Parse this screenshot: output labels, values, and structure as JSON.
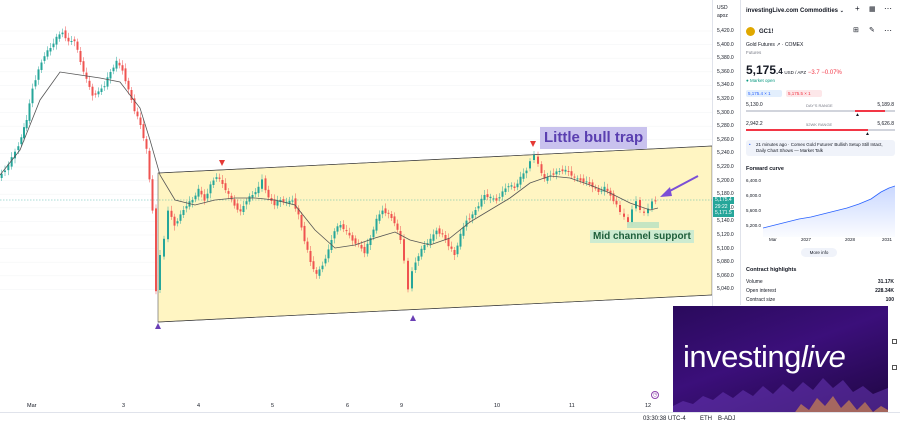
{
  "chart": {
    "currency": "USD",
    "unit": "apoz",
    "price_ticks": [
      "5,420.0",
      "5,400.0",
      "5,380.0",
      "5,360.0",
      "5,340.0",
      "5,320.0",
      "5,300.0",
      "5,280.0",
      "5,260.0",
      "5,240.0",
      "5,220.0",
      "5,200.0",
      "5,180.0",
      "5,160.0",
      "5,140.0",
      "5,120.0",
      "5,100.0",
      "5,080.0",
      "5,060.0",
      "5,040.0"
    ],
    "time_ticks": [
      "Mar",
      "3",
      "4",
      "5",
      "6",
      "9",
      "10",
      "11",
      "12"
    ],
    "last_price_tag": "5,175.4",
    "last_price_sub": "29:22",
    "second_price_tag": "5,171.5",
    "annotations": {
      "bull_trap": "Little bull trap",
      "mid_support": "Mid channel support"
    },
    "colors": {
      "up": "#26a69a",
      "down": "#ef5350",
      "channel_fill": "#fff5c2",
      "arrow_down": "#e53935",
      "arrow_up": "#6a3fb5",
      "label_bg": "#c9c2ee",
      "label_text": "#5a3fb0",
      "support_bg": "#cdebd0",
      "support_text": "#1e5e3a"
    }
  },
  "status_bar": {
    "time": "03:30:38 UTC-4",
    "session": "ETH",
    "adj": "B-ADJ"
  },
  "panel": {
    "watchlist_name": "investingLive.com Commodities",
    "symbol": "GC1!",
    "description": "Gold Futures",
    "exchange": "COMEX",
    "type": "Futures",
    "price_main": "5,175",
    "price_frac": ".4",
    "price_unit": "USD / APZ",
    "change": "−3.7",
    "change_pct": "−0.07%",
    "market_status": "Market open",
    "bid": "5,175.4",
    "bid_size": "1",
    "ask": "5,175.5",
    "ask_size": "1",
    "days_range_label": "DAY'S RANGE",
    "days_low": "5,130.0",
    "days_high": "5,189.8",
    "week52_label": "52WK RANGE",
    "week52_low": "2,942.2",
    "week52_high": "5,626.8",
    "news": "21 minutes ago · Comex Gold Futures' Bullish Setup Still Intact, Daily Chart Shows — Market Talk",
    "forward_curve_title": "Forward curve",
    "fc_ticks": [
      "6,400.0",
      "6,000.0",
      "5,600.0",
      "5,200.0"
    ],
    "fc_x": [
      "Mar",
      "2027",
      "2028",
      "2031"
    ],
    "more_info": "More info",
    "highlights_title": "Contract highlights",
    "volume_label": "Volume",
    "volume": "31.17K",
    "oi_label": "Open interest",
    "oi": "228.34K",
    "size_label": "Contract size",
    "size": "100"
  },
  "logo": {
    "part1": "investing",
    "part2": "live"
  }
}
